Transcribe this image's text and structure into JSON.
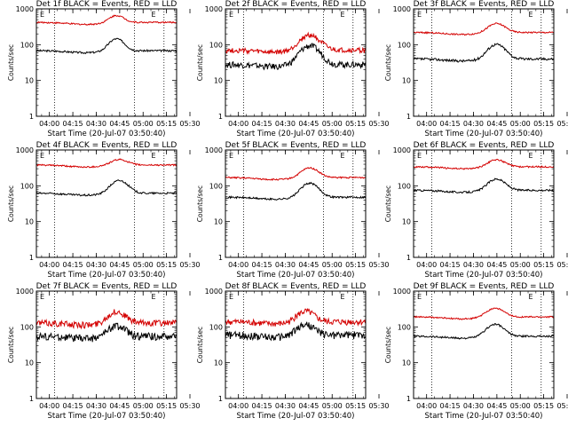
{
  "chart_data": [
    {
      "type": "line",
      "title": "Det 1f BLACK = Events, RED = LLD",
      "ylabel": "Counts/sec",
      "xlabel": "Start Time (20-Jul-07 03:50:40)",
      "yscale": "log",
      "ylim": [
        1,
        1000
      ],
      "xlim": [
        0,
        100
      ],
      "x_ticks": [
        "04:00",
        "04:15",
        "04:30",
        "04:45",
        "05:00",
        "05:15",
        "05:30"
      ],
      "y_ticks": [
        "1",
        "10",
        "100",
        "1000"
      ],
      "dotted_vlines": [
        13,
        70,
        91
      ],
      "marker": "E",
      "series": [
        {
          "color": "#000000",
          "base": 68,
          "bump_mult": 2.2,
          "bump_center": 57,
          "bump_width": 7,
          "noise": 0.015
        },
        {
          "color": "#d40000",
          "base": 420,
          "bump_mult": 1.6,
          "bump_center": 57,
          "bump_width": 7,
          "noise": 0.012
        }
      ]
    },
    {
      "type": "line",
      "title": "Det 2f BLACK = Events, RED = LLD",
      "ylabel": "Counts/sec",
      "xlabel": "Start Time (20-Jul-07 03:50:40)",
      "yscale": "log",
      "ylim": [
        1,
        1000
      ],
      "xlim": [
        0,
        100
      ],
      "x_ticks": [
        "04:00",
        "04:15",
        "04:30",
        "04:45",
        "05:00",
        "05:15",
        "05:30"
      ],
      "y_ticks": [
        "1",
        "10",
        "100",
        "1000"
      ],
      "dotted_vlines": [
        13,
        70,
        91
      ],
      "marker": "E",
      "series": [
        {
          "color": "#000000",
          "base": 28,
          "bump_mult": 3.4,
          "bump_center": 60,
          "bump_width": 9,
          "noise": 0.05
        },
        {
          "color": "#d40000",
          "base": 70,
          "bump_mult": 2.7,
          "bump_center": 60,
          "bump_width": 9,
          "noise": 0.04
        }
      ]
    },
    {
      "type": "line",
      "title": "Det 3f BLACK = Events, RED = LLD",
      "ylabel": "Counts/sec",
      "xlabel": "Start Time (20-Jul-07 03:50:40)",
      "yscale": "log",
      "ylim": [
        1,
        1000
      ],
      "xlim": [
        0,
        100
      ],
      "x_ticks": [
        "04:00",
        "04:15",
        "04:30",
        "04:45",
        "05:00",
        "05:15",
        "05:30"
      ],
      "y_ticks": [
        "1",
        "10",
        "100",
        "1000"
      ],
      "dotted_vlines": [
        13,
        70,
        91
      ],
      "marker": "E",
      "series": [
        {
          "color": "#000000",
          "base": 40,
          "bump_mult": 2.6,
          "bump_center": 59,
          "bump_width": 8,
          "noise": 0.02
        },
        {
          "color": "#d40000",
          "base": 220,
          "bump_mult": 1.8,
          "bump_center": 59,
          "bump_width": 8,
          "noise": 0.012
        }
      ]
    },
    {
      "type": "line",
      "title": "Det 4f BLACK = Events, RED = LLD",
      "ylabel": "Counts/sec",
      "xlabel": "Start Time (20-Jul-07 03:50:40)",
      "yscale": "log",
      "ylim": [
        1,
        1000
      ],
      "xlim": [
        0,
        100
      ],
      "x_ticks": [
        "04:00",
        "04:15",
        "04:30",
        "04:45",
        "05:00",
        "05:15",
        "05:30"
      ],
      "y_ticks": [
        "1",
        "10",
        "100",
        "1000"
      ],
      "dotted_vlines": [
        13,
        70,
        91
      ],
      "marker": "E",
      "series": [
        {
          "color": "#000000",
          "base": 62,
          "bump_mult": 2.3,
          "bump_center": 59,
          "bump_width": 8,
          "noise": 0.015
        },
        {
          "color": "#d40000",
          "base": 380,
          "bump_mult": 1.45,
          "bump_center": 59,
          "bump_width": 8,
          "noise": 0.012
        }
      ]
    },
    {
      "type": "line",
      "title": "Det 5f BLACK = Events, RED = LLD",
      "ylabel": "Counts/sec",
      "xlabel": "Start Time (20-Jul-07 03:50:40)",
      "yscale": "log",
      "ylim": [
        1,
        1000
      ],
      "xlim": [
        0,
        100
      ],
      "x_ticks": [
        "04:00",
        "04:15",
        "04:30",
        "04:45",
        "05:00",
        "05:15",
        "05:30"
      ],
      "y_ticks": [
        "1",
        "10",
        "100",
        "1000"
      ],
      "dotted_vlines": [
        13,
        70,
        91
      ],
      "marker": "E",
      "series": [
        {
          "color": "#000000",
          "base": 48,
          "bump_mult": 2.5,
          "bump_center": 60,
          "bump_width": 8,
          "noise": 0.015
        },
        {
          "color": "#d40000",
          "base": 170,
          "bump_mult": 1.9,
          "bump_center": 60,
          "bump_width": 8,
          "noise": 0.012
        }
      ]
    },
    {
      "type": "line",
      "title": "Det 6f BLACK = Events, RED = LLD",
      "ylabel": "Counts/sec",
      "xlabel": "Start Time (20-Jul-07 03:50:40)",
      "yscale": "log",
      "ylim": [
        1,
        1000
      ],
      "xlim": [
        0,
        100
      ],
      "x_ticks": [
        "04:00",
        "04:15",
        "04:30",
        "04:45",
        "05:00",
        "05:15",
        "05:30"
      ],
      "y_ticks": [
        "1",
        "10",
        "100",
        "1000"
      ],
      "dotted_vlines": [
        13,
        70,
        91
      ],
      "marker": "E",
      "series": [
        {
          "color": "#000000",
          "base": 75,
          "bump_mult": 2.1,
          "bump_center": 59,
          "bump_width": 8,
          "noise": 0.015
        },
        {
          "color": "#d40000",
          "base": 340,
          "bump_mult": 1.6,
          "bump_center": 59,
          "bump_width": 8,
          "noise": 0.012
        }
      ]
    },
    {
      "type": "line",
      "title": "Det 7f BLACK = Events, RED = LLD",
      "ylabel": "Counts/sec",
      "xlabel": "Start Time (20-Jul-07 03:50:40)",
      "yscale": "log",
      "ylim": [
        1,
        1000
      ],
      "xlim": [
        0,
        100
      ],
      "x_ticks": [
        "04:00",
        "04:15",
        "04:30",
        "04:45",
        "05:00",
        "05:15",
        "05:30"
      ],
      "y_ticks": [
        "1",
        "10",
        "100",
        "1000"
      ],
      "dotted_vlines": [
        13,
        70,
        91
      ],
      "marker": "E",
      "series": [
        {
          "color": "#000000",
          "base": 55,
          "bump_mult": 2.0,
          "bump_center": 57,
          "bump_width": 8,
          "noise": 0.06
        },
        {
          "color": "#d40000",
          "base": 130,
          "bump_mult": 2.1,
          "bump_center": 57,
          "bump_width": 8,
          "noise": 0.05
        }
      ]
    },
    {
      "type": "line",
      "title": "Det 8f BLACK = Events, RED = LLD",
      "ylabel": "Counts/sec",
      "xlabel": "Start Time (20-Jul-07 03:50:40)",
      "yscale": "log",
      "ylim": [
        1,
        1000
      ],
      "xlim": [
        0,
        100
      ],
      "x_ticks": [
        "04:00",
        "04:15",
        "04:30",
        "04:45",
        "05:00",
        "05:15",
        "05:30"
      ],
      "y_ticks": [
        "1",
        "10",
        "100",
        "1000"
      ],
      "dotted_vlines": [
        13,
        70,
        91
      ],
      "marker": "E",
      "series": [
        {
          "color": "#000000",
          "base": 60,
          "bump_mult": 2.0,
          "bump_center": 57,
          "bump_width": 8,
          "noise": 0.06
        },
        {
          "color": "#d40000",
          "base": 140,
          "bump_mult": 2.0,
          "bump_center": 57,
          "bump_width": 8,
          "noise": 0.05
        }
      ]
    },
    {
      "type": "line",
      "title": "Det 9f BLACK = Events, RED = LLD",
      "ylabel": "Counts/sec",
      "xlabel": "Start Time (20-Jul-07 03:50:40)",
      "yscale": "log",
      "ylim": [
        1,
        1000
      ],
      "xlim": [
        0,
        100
      ],
      "x_ticks": [
        "04:00",
        "04:15",
        "04:30",
        "04:45",
        "05:00",
        "05:15",
        "05:30"
      ],
      "y_ticks": [
        "1",
        "10",
        "100",
        "1000"
      ],
      "dotted_vlines": [
        13,
        70,
        91
      ],
      "marker": "E",
      "series": [
        {
          "color": "#000000",
          "base": 55,
          "bump_mult": 2.2,
          "bump_center": 58,
          "bump_width": 8,
          "noise": 0.015
        },
        {
          "color": "#d40000",
          "base": 190,
          "bump_mult": 1.8,
          "bump_center": 58,
          "bump_width": 8,
          "noise": 0.012
        }
      ]
    }
  ]
}
